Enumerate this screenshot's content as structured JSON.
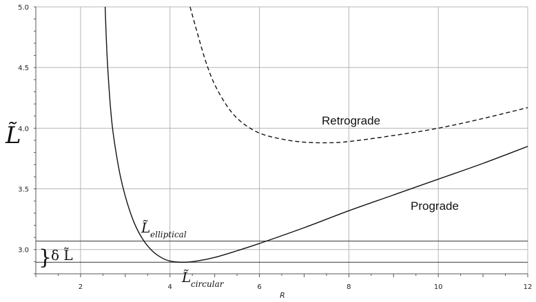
{
  "chart_data": {
    "type": "line",
    "xlabel": "R",
    "ylabel": "L̃",
    "xlim": [
      1,
      12
    ],
    "ylim": [
      2.8,
      5.0
    ],
    "x_ticks": [
      "2",
      "4",
      "6",
      "8",
      "10",
      "12"
    ],
    "y_ticks": [
      "3.0",
      "3.5",
      "4.0",
      "4.5",
      "5.0"
    ],
    "grid": true,
    "series": [
      {
        "name": "Prograde",
        "style": "solid",
        "x": [
          2.55,
          2.6,
          2.7,
          2.85,
          3.0,
          3.2,
          3.4,
          3.6,
          3.8,
          4.0,
          4.3,
          4.6,
          5.0,
          5.5,
          6.0,
          7.0,
          8.0,
          9.0,
          10.0,
          11.0,
          12.0
        ],
        "y": [
          5.0,
          4.55,
          4.05,
          3.68,
          3.44,
          3.22,
          3.08,
          2.99,
          2.935,
          2.905,
          2.895,
          2.905,
          2.935,
          2.99,
          3.05,
          3.18,
          3.32,
          3.45,
          3.58,
          3.71,
          3.85
        ]
      },
      {
        "name": "Retrograde",
        "style": "dashed",
        "x": [
          4.45,
          4.6,
          4.8,
          5.0,
          5.3,
          5.6,
          6.0,
          6.5,
          7.0,
          7.5,
          8.0,
          9.0,
          10.0,
          11.0,
          12.0
        ],
        "y": [
          5.0,
          4.8,
          4.55,
          4.36,
          4.17,
          4.05,
          3.96,
          3.91,
          3.885,
          3.88,
          3.89,
          3.94,
          4.0,
          4.08,
          4.17
        ]
      }
    ],
    "reference_lines": [
      {
        "y": 2.895
      },
      {
        "y": 3.07
      }
    ],
    "annotations": {
      "retrograde": "Retrograde",
      "prograde": "Prograde",
      "elliptical_main": "L̃",
      "elliptical_sub": "elliptical",
      "circular_main": "L̃",
      "circular_sub": "circular",
      "delta_brace": "}",
      "delta_label": "δ L̃"
    }
  }
}
